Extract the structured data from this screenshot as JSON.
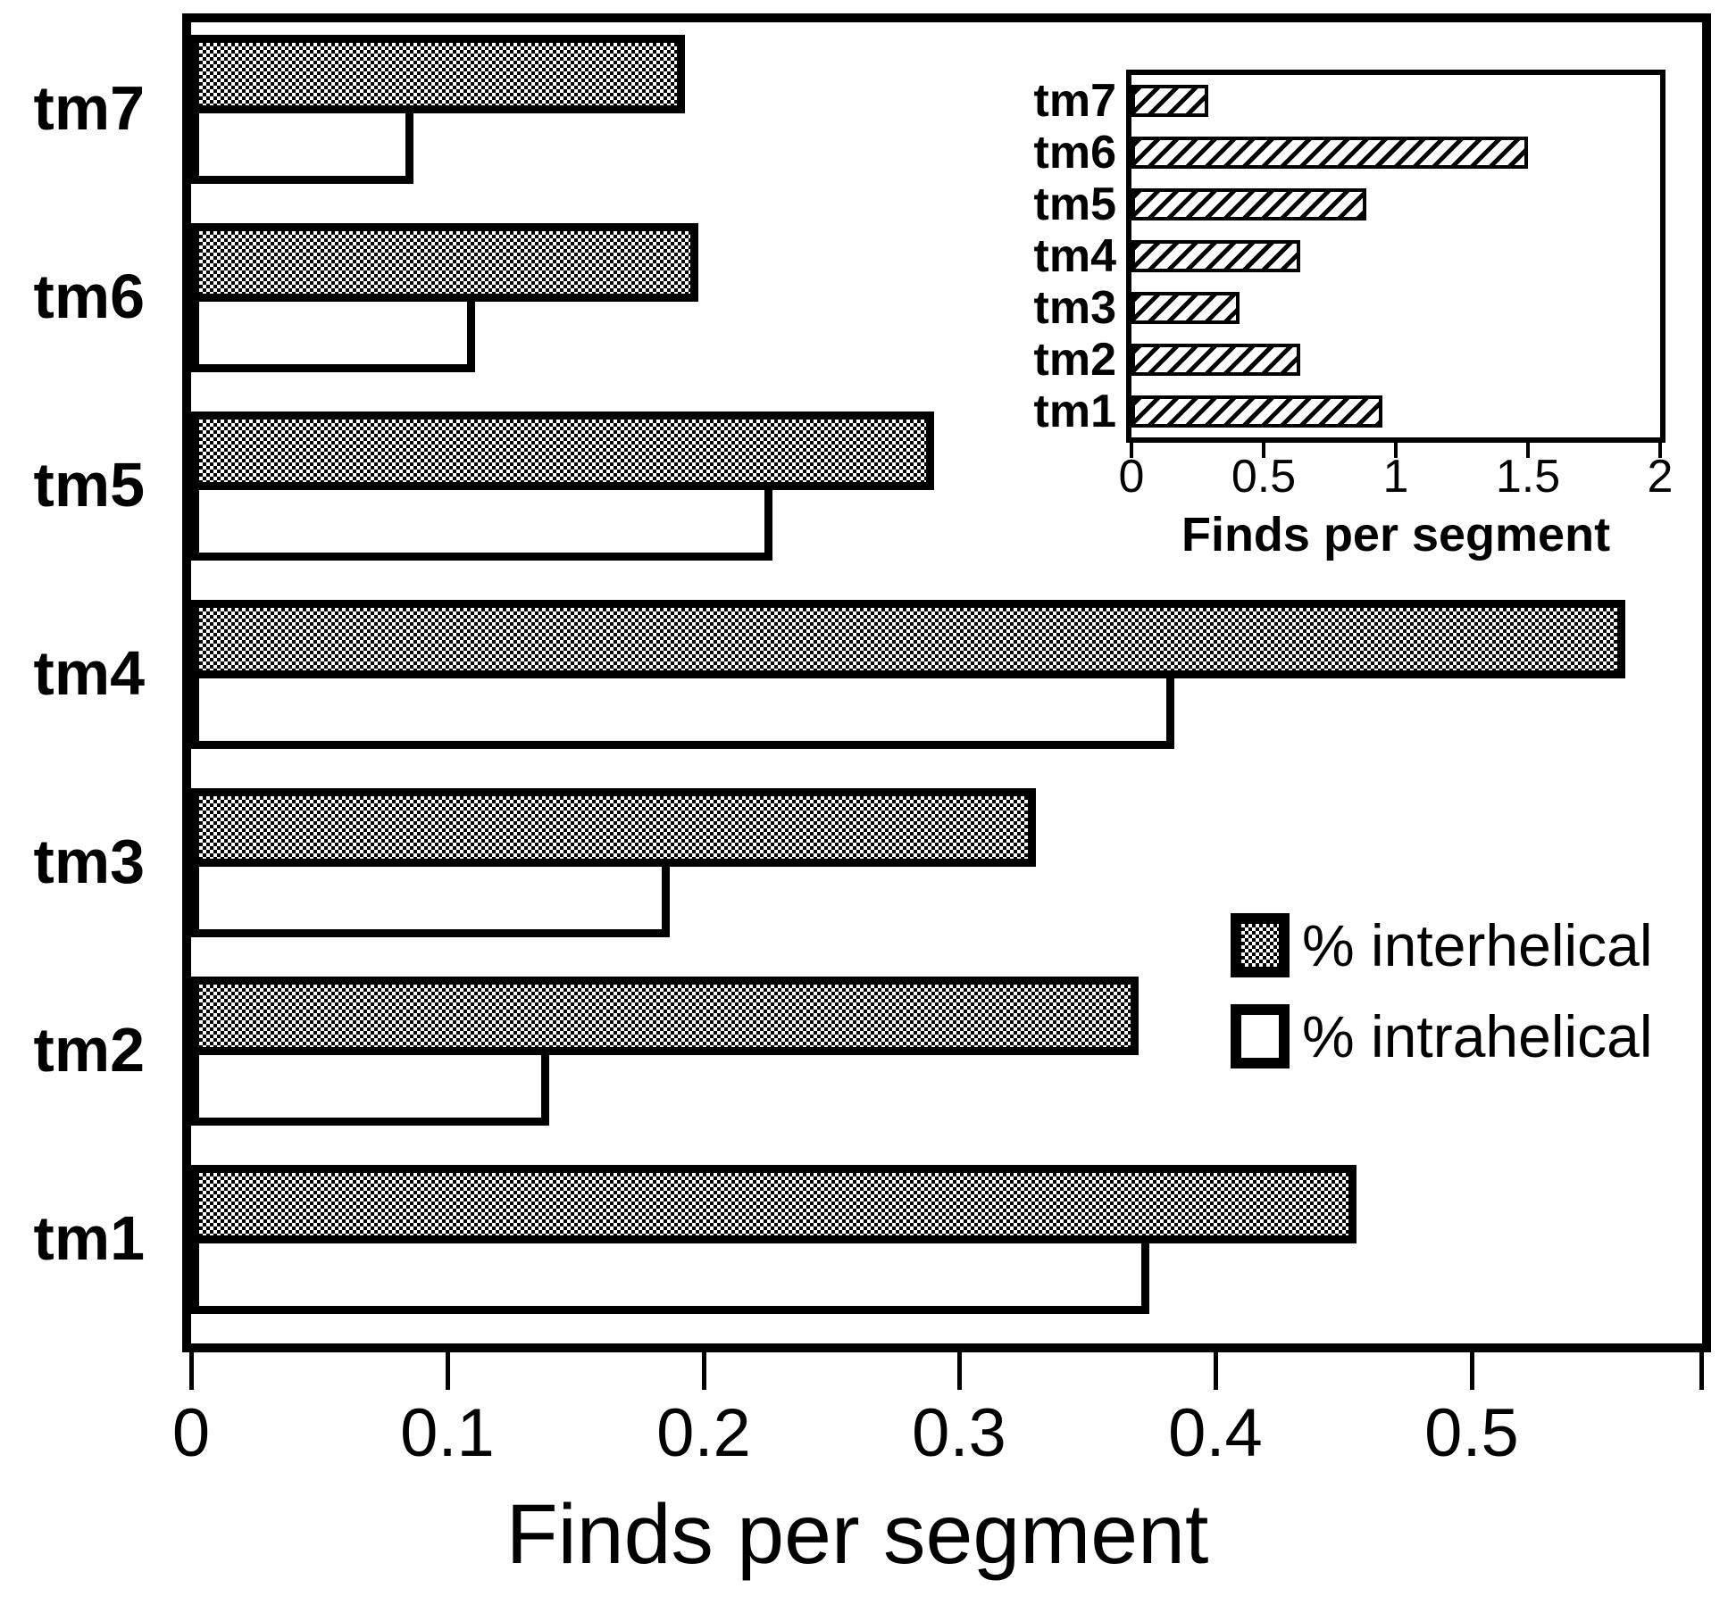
{
  "figure": {
    "background": "#ffffff",
    "ink_color": "#000000"
  },
  "legend": {
    "entries": [
      {
        "label": "% interhelical",
        "pattern": "checkerboard"
      },
      {
        "label": "% intrahelical",
        "pattern": "solid-white"
      }
    ]
  },
  "chart_data": [
    {
      "type": "bar",
      "orientation": "horizontal",
      "title": "",
      "categories_top_to_bottom": [
        "tm7",
        "tm6",
        "tm5",
        "tm4",
        "tm3",
        "tm2",
        "tm1"
      ],
      "series": [
        {
          "name": "% interhelical",
          "pattern": "checkerboard",
          "values": [
            0.193,
            0.198,
            0.29,
            0.56,
            0.33,
            0.37,
            0.455
          ]
        },
        {
          "name": "% intrahelical",
          "pattern": "solid-white",
          "values": [
            0.087,
            0.111,
            0.227,
            0.384,
            0.187,
            0.14,
            0.374
          ]
        }
      ],
      "xlabel": "Finds per segment",
      "xlim": [
        0,
        0.59
      ],
      "xticks": [
        0,
        0.1,
        0.2,
        0.3,
        0.4,
        0.5
      ],
      "xtick_labels": [
        "0",
        "0.1",
        "0.2",
        "0.3",
        "0.4",
        "0.5"
      ],
      "grid": false,
      "legend_position": "center-right"
    },
    {
      "type": "bar",
      "orientation": "horizontal",
      "inset": true,
      "title": "",
      "categories_top_to_bottom": [
        "tm7",
        "tm6",
        "tm5",
        "tm4",
        "tm3",
        "tm2",
        "tm1"
      ],
      "series": [
        {
          "name": "Finds per segment",
          "pattern": "diagonal-hatch",
          "values": [
            0.29,
            1.5,
            0.89,
            0.64,
            0.41,
            0.64,
            0.95
          ]
        }
      ],
      "xlabel": "Finds per segment",
      "xlim": [
        0,
        2
      ],
      "xticks": [
        0,
        0.5,
        1,
        1.5,
        2
      ],
      "xtick_labels": [
        "0",
        "0.5",
        "1",
        "1.5",
        "2"
      ],
      "grid": false
    }
  ]
}
